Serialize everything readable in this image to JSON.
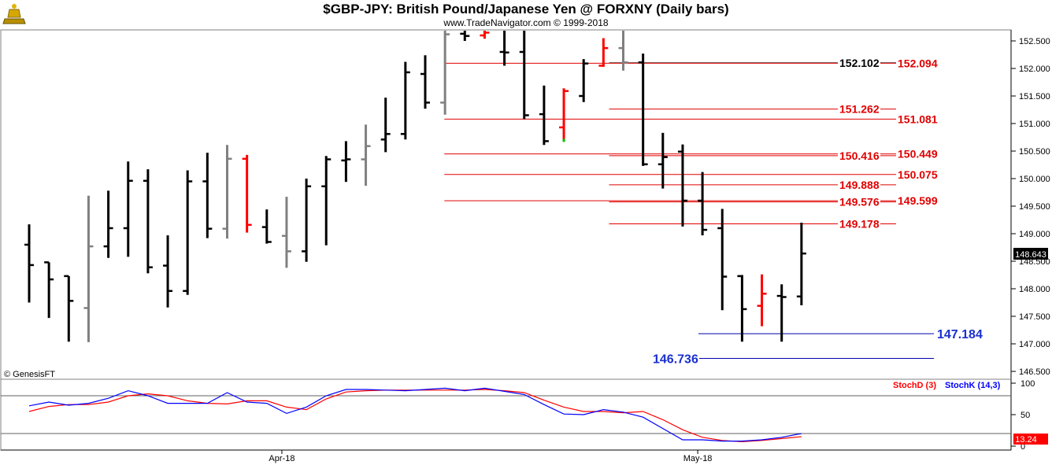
{
  "title": "$GBP-JPY:  British Pound/Japanese Yen @ FORXNY  (Daily bars)",
  "copyright": "www.TradeNavigator.com © 1999-2018",
  "source_label": "© GenesisFT",
  "logo_icon": "gold-trader-figure-icon",
  "last_price_label": "148.643",
  "stoch_last_label": "13.24",
  "colors": {
    "up_bar": "#000000",
    "gray_bar": "#808080",
    "red_bar": "#ff0000",
    "level_line": "#e00000",
    "level_text": "#e00000",
    "support_line": "#0000aa",
    "support_text": "#1a2fd0",
    "stochD": "#ff0000",
    "stochK": "#0000ff"
  },
  "chart_data": [
    {
      "type": "ohlc",
      "title": "$GBP-JPY:  British Pound/Japanese Yen @ FORXNY  (Daily bars)",
      "ylim": [
        146.5,
        152.7
      ],
      "yticks": [
        "152.500",
        "152.000",
        "151.500",
        "151.000",
        "150.500",
        "150.000",
        "149.500",
        "149.000",
        "148.500",
        "148.000",
        "147.500",
        "147.000",
        "146.500"
      ],
      "ytick_values": [
        152.5,
        152.0,
        151.5,
        151.0,
        150.5,
        150.0,
        149.5,
        149.0,
        148.5,
        148.0,
        147.5,
        147.0,
        146.5
      ],
      "xtick_labels": [
        {
          "label": "Apr-18",
          "bar": 13
        },
        {
          "label": "May-18",
          "bar": 34
        }
      ],
      "bars": [
        {
          "o": 148.8,
          "h": 149.17,
          "l": 147.75,
          "c": 148.43,
          "color": "black"
        },
        {
          "o": 148.48,
          "h": 148.48,
          "l": 147.47,
          "c": 148.17,
          "color": "black"
        },
        {
          "o": 148.23,
          "h": 148.23,
          "l": 147.04,
          "c": 147.78,
          "color": "black"
        },
        {
          "o": 147.65,
          "h": 149.69,
          "l": 147.03,
          "c": 148.77,
          "color": "gray"
        },
        {
          "o": 148.77,
          "h": 149.78,
          "l": 148.56,
          "c": 149.1,
          "color": "black"
        },
        {
          "o": 149.1,
          "h": 150.31,
          "l": 148.58,
          "c": 149.96,
          "color": "black"
        },
        {
          "o": 149.96,
          "h": 150.17,
          "l": 148.28,
          "c": 148.39,
          "color": "black"
        },
        {
          "o": 148.42,
          "h": 148.97,
          "l": 147.66,
          "c": 147.96,
          "color": "black"
        },
        {
          "o": 147.96,
          "h": 150.15,
          "l": 147.89,
          "c": 149.95,
          "color": "black"
        },
        {
          "o": 149.95,
          "h": 150.47,
          "l": 148.92,
          "c": 149.09,
          "color": "black"
        },
        {
          "o": 149.09,
          "h": 150.61,
          "l": 148.91,
          "c": 150.36,
          "color": "gray"
        },
        {
          "o": 150.36,
          "h": 150.43,
          "l": 149.02,
          "c": 149.16,
          "color": "red"
        },
        {
          "o": 149.12,
          "h": 149.44,
          "l": 148.82,
          "c": 148.85,
          "color": "black"
        },
        {
          "o": 148.96,
          "h": 149.67,
          "l": 148.38,
          "c": 148.68,
          "color": "gray"
        },
        {
          "o": 148.68,
          "h": 150.0,
          "l": 148.49,
          "c": 149.86,
          "color": "black"
        },
        {
          "o": 149.86,
          "h": 150.41,
          "l": 148.79,
          "c": 150.35,
          "color": "black"
        },
        {
          "o": 150.33,
          "h": 150.68,
          "l": 149.94,
          "c": 150.35,
          "color": "black"
        },
        {
          "o": 150.35,
          "h": 150.98,
          "l": 149.87,
          "c": 150.59,
          "color": "gray"
        },
        {
          "o": 150.71,
          "h": 151.47,
          "l": 150.48,
          "c": 150.81,
          "color": "black"
        },
        {
          "o": 150.81,
          "h": 152.12,
          "l": 150.71,
          "c": 151.93,
          "color": "black"
        },
        {
          "o": 151.9,
          "h": 152.24,
          "l": 151.27,
          "c": 151.38,
          "color": "black"
        },
        {
          "o": 151.38,
          "h": 152.72,
          "l": 151.16,
          "c": 152.62,
          "color": "gray"
        },
        {
          "o": 152.63,
          "h": 152.72,
          "l": 152.5,
          "c": 152.59,
          "color": "black"
        },
        {
          "o": 152.6,
          "h": 152.72,
          "l": 152.54,
          "c": 152.65,
          "color": "red"
        },
        {
          "o": 152.3,
          "h": 152.72,
          "l": 152.05,
          "c": 152.29,
          "color": "black"
        },
        {
          "o": 152.3,
          "h": 152.72,
          "l": 151.08,
          "c": 151.15,
          "color": "black"
        },
        {
          "o": 151.17,
          "h": 151.69,
          "l": 150.61,
          "c": 150.68,
          "color": "black"
        },
        {
          "o": 150.93,
          "h": 151.64,
          "l": 150.68,
          "c": 151.59,
          "color": "red"
        },
        {
          "o": 151.5,
          "h": 152.17,
          "l": 151.39,
          "c": 152.09,
          "color": "black"
        },
        {
          "o": 152.05,
          "h": 152.55,
          "l": 152.03,
          "c": 152.37,
          "color": "red"
        },
        {
          "o": 152.37,
          "h": 152.72,
          "l": 151.96,
          "c": 152.11,
          "color": "gray"
        },
        {
          "o": 152.11,
          "h": 152.27,
          "l": 150.23,
          "c": 150.26,
          "color": "black"
        },
        {
          "o": 150.26,
          "h": 150.83,
          "l": 149.82,
          "c": 150.39,
          "color": "black"
        },
        {
          "o": 150.49,
          "h": 150.62,
          "l": 149.13,
          "c": 149.6,
          "color": "black"
        },
        {
          "o": 149.6,
          "h": 150.12,
          "l": 148.97,
          "c": 149.07,
          "color": "black"
        },
        {
          "o": 149.1,
          "h": 149.45,
          "l": 147.61,
          "c": 148.22,
          "color": "black"
        },
        {
          "o": 148.23,
          "h": 148.25,
          "l": 147.04,
          "c": 147.63,
          "color": "black"
        },
        {
          "o": 147.69,
          "h": 148.26,
          "l": 147.32,
          "c": 147.91,
          "color": "red"
        },
        {
          "o": 147.87,
          "h": 148.08,
          "l": 147.04,
          "c": 147.85,
          "color": "black"
        },
        {
          "o": 147.86,
          "h": 149.2,
          "l": 147.7,
          "c": 148.64,
          "color": "black"
        }
      ],
      "levels": [
        {
          "value": 152.102,
          "label": "152.102",
          "color": "black",
          "start_bar": 30
        },
        {
          "value": 152.094,
          "label": "152.094",
          "color": "red",
          "start_bar": 22
        },
        {
          "value": 151.262,
          "label": "151.262",
          "color": "red",
          "start_bar": 30
        },
        {
          "value": 151.081,
          "label": "151.081",
          "color": "red",
          "start_bar": 22
        },
        {
          "value": 150.416,
          "label": "150.416",
          "color": "red",
          "start_bar": 30
        },
        {
          "value": 150.449,
          "label": "150.449",
          "color": "red",
          "start_bar": 22
        },
        {
          "value": 150.075,
          "label": "150.075",
          "color": "red",
          "start_bar": 22
        },
        {
          "value": 149.888,
          "label": "149.888",
          "color": "red",
          "start_bar": 30
        },
        {
          "value": 149.576,
          "label": "149.576",
          "color": "red",
          "start_bar": 30
        },
        {
          "value": 149.599,
          "label": "149.599",
          "color": "red",
          "start_bar": 22
        },
        {
          "value": 149.178,
          "label": "149.178",
          "color": "red",
          "start_bar": 30
        }
      ],
      "supports": [
        {
          "value": 147.184,
          "label": "147.184"
        },
        {
          "value": 146.736,
          "label": "146.736"
        }
      ]
    },
    {
      "type": "line",
      "legend": [
        "StochD (3)",
        "StochK (14,3)"
      ],
      "ylim": [
        0,
        100
      ],
      "yticks": [
        "100",
        "50",
        "0"
      ],
      "ytick_values": [
        100,
        50,
        0
      ],
      "hlines": [
        80,
        20
      ],
      "series": [
        {
          "name": "StochD (3)",
          "color": "#ff0000",
          "values": [
            55,
            63,
            66,
            66,
            70,
            80,
            83,
            80,
            72,
            68,
            67,
            72,
            72,
            62,
            58,
            75,
            86,
            88,
            89,
            89,
            89,
            89,
            89,
            90,
            88,
            85,
            73,
            62,
            55,
            55,
            53,
            55,
            42,
            26,
            14,
            9,
            7,
            9,
            12,
            15
          ]
        },
        {
          "name": "StochK (14,3)",
          "color": "#0000ff",
          "values": [
            64,
            70,
            65,
            68,
            76,
            88,
            80,
            68,
            68,
            68,
            85,
            70,
            68,
            52,
            62,
            80,
            90,
            90,
            89,
            88,
            90,
            92,
            88,
            92,
            87,
            82,
            66,
            51,
            50,
            58,
            54,
            46,
            28,
            10,
            10,
            8,
            8,
            10,
            14,
            20
          ]
        }
      ]
    }
  ]
}
